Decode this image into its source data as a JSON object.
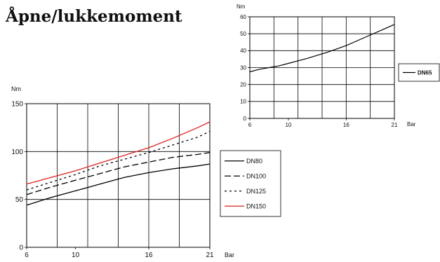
{
  "page": {
    "title": "Åpne/lukkemoment"
  },
  "chart_data": [
    {
      "type": "line",
      "title": "",
      "xlabel": "Bar",
      "ylabel": "Nm",
      "x_ticks": [
        "6",
        "10",
        "16",
        "21"
      ],
      "x_positions": [
        6,
        10,
        16,
        21
      ],
      "xlim": [
        6,
        21
      ],
      "ylim": [
        0,
        60
      ],
      "y_ticks": [
        0,
        10,
        20,
        30,
        40,
        50,
        60
      ],
      "grid": true,
      "legend": "right",
      "series": [
        {
          "name": "DN65",
          "color": "#000000",
          "dash": "solid",
          "legend_bold": true,
          "x": [
            6,
            7,
            8,
            9,
            10,
            11,
            12,
            13,
            14,
            15,
            16,
            17,
            18,
            19,
            20,
            21
          ],
          "y": [
            27.5,
            29.0,
            30.0,
            31.0,
            32.5,
            34.0,
            35.5,
            37.3,
            39.0,
            41.0,
            43.0,
            45.5,
            48.0,
            50.5,
            53.0,
            55.5
          ]
        }
      ]
    },
    {
      "type": "line",
      "title": "",
      "xlabel": "Bar",
      "ylabel": "Nm",
      "x_ticks": [
        "6",
        "10",
        "16",
        "21"
      ],
      "x_positions": [
        6,
        10,
        16,
        21
      ],
      "xlim": [
        6,
        21
      ],
      "ylim": [
        0,
        150
      ],
      "y_ticks": [
        0,
        50,
        100,
        150
      ],
      "grid": true,
      "legend": "right",
      "series": [
        {
          "name": "DN80",
          "color": "#000000",
          "dash": "solid",
          "x": [
            6,
            8,
            10,
            12,
            14,
            16,
            18,
            20,
            21
          ],
          "y": [
            44,
            52,
            59,
            66,
            73,
            78,
            82,
            85,
            87
          ]
        },
        {
          "name": "DN100",
          "color": "#000000",
          "dash": "long",
          "x": [
            6,
            8,
            10,
            12,
            14,
            16,
            18,
            20,
            21
          ],
          "y": [
            55,
            63,
            70,
            77,
            84,
            89,
            94,
            97,
            99
          ]
        },
        {
          "name": "DN125",
          "color": "#000000",
          "dash": "dot",
          "x": [
            6,
            8,
            10,
            12,
            14,
            16,
            18,
            20,
            21
          ],
          "y": [
            60,
            68,
            76,
            85,
            92,
            99,
            107,
            115,
            121
          ]
        },
        {
          "name": "DN150",
          "color": "#e02020",
          "dash": "solid",
          "x": [
            6,
            8,
            10,
            12,
            14,
            16,
            18,
            20,
            21
          ],
          "y": [
            66,
            73,
            80,
            88,
            96,
            104,
            114,
            125,
            131
          ]
        }
      ]
    }
  ]
}
